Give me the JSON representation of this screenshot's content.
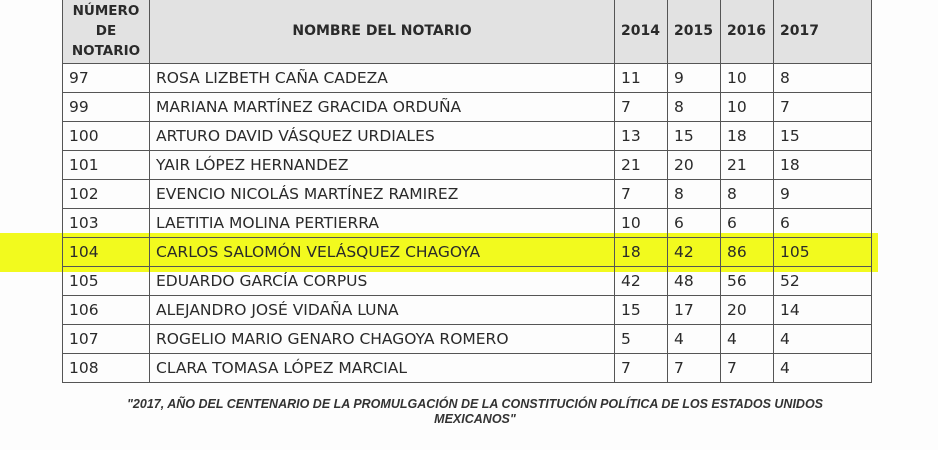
{
  "table": {
    "headers": [
      "NÚMERO DE NOTARIO",
      "NOMBRE DEL NOTARIO",
      "2014",
      "2015",
      "2016",
      "2017"
    ],
    "header_num_lines": [
      "NÚMERO",
      "DE",
      "NOTARIO"
    ],
    "rows": [
      [
        "97",
        "ROSA LIZBETH CAÑA CADEZA",
        "11",
        "9",
        "10",
        "8"
      ],
      [
        "99",
        "MARIANA MARTÍNEZ GRACIDA ORDUÑA",
        "7",
        "8",
        "10",
        "7"
      ],
      [
        "100",
        "ARTURO DAVID VÁSQUEZ URDIALES",
        "13",
        "15",
        "18",
        "15"
      ],
      [
        "101",
        "YAIR LÓPEZ HERNANDEZ",
        "21",
        "20",
        "21",
        "18"
      ],
      [
        "102",
        "EVENCIO NICOLÁS MARTÍNEZ RAMIREZ",
        "7",
        "8",
        "8",
        "9"
      ],
      [
        "103",
        "LAETITIA MOLINA PERTIERRA",
        "10",
        "6",
        "6",
        "6"
      ],
      [
        "104",
        "CARLOS SALOMÓN VELÁSQUEZ CHAGOYA",
        "18",
        "42",
        "86",
        "105"
      ],
      [
        "105",
        "EDUARDO GARCÍA CORPUS",
        "42",
        "48",
        "56",
        "52"
      ],
      [
        "106",
        "ALEJANDRO JOSÉ VIDAÑA LUNA",
        "15",
        "17",
        "20",
        "14"
      ],
      [
        "107",
        "ROGELIO MARIO GENARO CHAGOYA ROMERO",
        "5",
        "4",
        "4",
        "4"
      ],
      [
        "108",
        "CLARA TOMASA LÓPEZ MARCIAL",
        "7",
        "7",
        "7",
        "4"
      ]
    ],
    "highlighted_row": "104",
    "highlight_color": "#f2fa1e"
  },
  "footer": {
    "line1": "\"2017, AÑO DEL CENTENARIO DE LA PROMULGACIÓN DE LA CONSTITUCIÓN POLÍTICA DE LOS ESTADOS UNIDOS",
    "line2": "MEXICANOS\""
  }
}
